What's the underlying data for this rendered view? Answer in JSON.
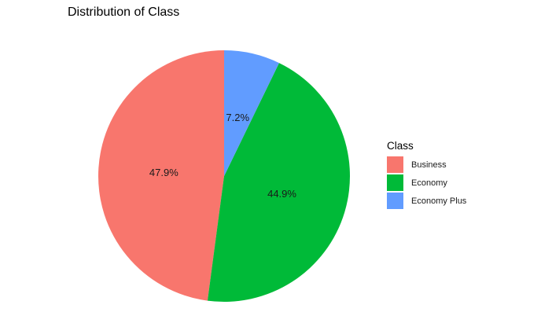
{
  "chart_data": {
    "type": "pie",
    "title": "Distribution of Class",
    "legend_title": "Class",
    "legend_position": "right",
    "categories": [
      "Business",
      "Economy",
      "Economy Plus"
    ],
    "values": [
      47.9,
      44.9,
      7.2
    ],
    "labels": [
      "47.9%",
      "44.9%",
      "7.2%"
    ],
    "colors": [
      "#F8766D",
      "#00BA38",
      "#619CFF"
    ],
    "direction": "counterclockwise",
    "start": "top"
  }
}
